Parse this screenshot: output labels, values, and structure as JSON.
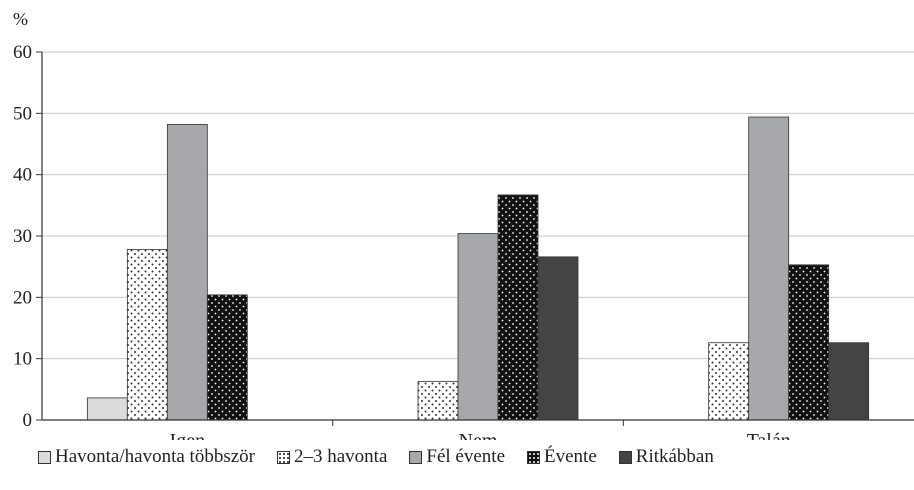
{
  "chart_data": {
    "type": "bar",
    "unit_label": "%",
    "categories": [
      "Igen",
      "Nem",
      "Talán"
    ],
    "series": [
      {
        "name": "Havonta/havonta többször",
        "values": [
          3.6,
          0,
          0
        ],
        "fill": "#dcdcdc",
        "pattern": "solid"
      },
      {
        "name": "2–3 havonta",
        "values": [
          27.8,
          6.3,
          12.6
        ],
        "fill": "#ffffff",
        "pattern": "dots-dark"
      },
      {
        "name": "Fél évente",
        "values": [
          48.2,
          30.4,
          49.4
        ],
        "fill": "#a7a8ab",
        "pattern": "solid"
      },
      {
        "name": "Évente",
        "values": [
          20.4,
          36.7,
          25.3
        ],
        "fill": "#111111",
        "pattern": "dots-light"
      },
      {
        "name": "Ritkábban",
        "values": [
          0,
          26.6,
          12.6
        ],
        "fill": "#444444",
        "pattern": "solid"
      }
    ],
    "ylim": [
      0,
      60
    ],
    "yticks": [
      0,
      10,
      20,
      30,
      40,
      50,
      60
    ],
    "grid": true,
    "legend_position": "bottom"
  }
}
